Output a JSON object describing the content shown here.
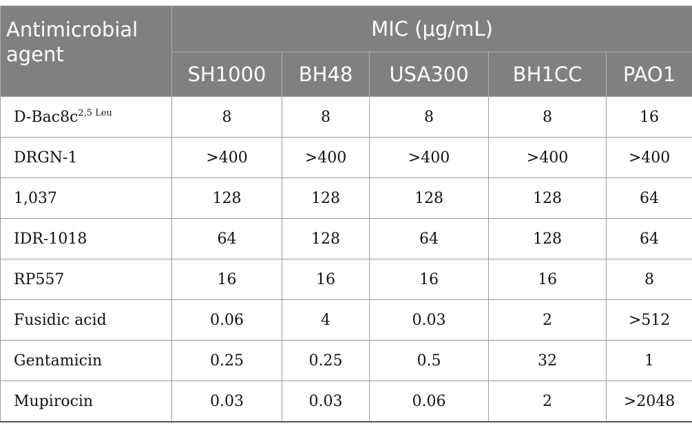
{
  "table": {
    "header": {
      "agent_label": "Antimicrobial agent",
      "mic_label": "MIC (μg/mL)",
      "strains": [
        "SH1000",
        "BH48",
        "USA300",
        "BH1CC",
        "PAO1"
      ]
    },
    "rows": [
      {
        "agent": "D-Bac8c",
        "superscript": "2,5 Leu",
        "values": [
          "8",
          "8",
          "8",
          "8",
          "16"
        ]
      },
      {
        "agent": "DRGN-1",
        "values": [
          ">400",
          ">400",
          ">400",
          ">400",
          ">400"
        ]
      },
      {
        "agent": "1,037",
        "values": [
          "128",
          "128",
          "128",
          "128",
          "64"
        ]
      },
      {
        "agent": "IDR-1018",
        "values": [
          "64",
          "128",
          "64",
          "128",
          "64"
        ]
      },
      {
        "agent": "RP557",
        "values": [
          "16",
          "16",
          "16",
          "16",
          "8"
        ]
      },
      {
        "agent": "Fusidic acid",
        "values": [
          "0.06",
          "4",
          "0.03",
          "2",
          ">512"
        ]
      },
      {
        "agent": "Gentamicin",
        "values": [
          "0.25",
          "0.25",
          "0.5",
          "32",
          "1"
        ]
      },
      {
        "agent": "Mupirocin",
        "values": [
          "0.03",
          "0.03",
          "0.06",
          "2",
          ">2048"
        ]
      }
    ]
  }
}
